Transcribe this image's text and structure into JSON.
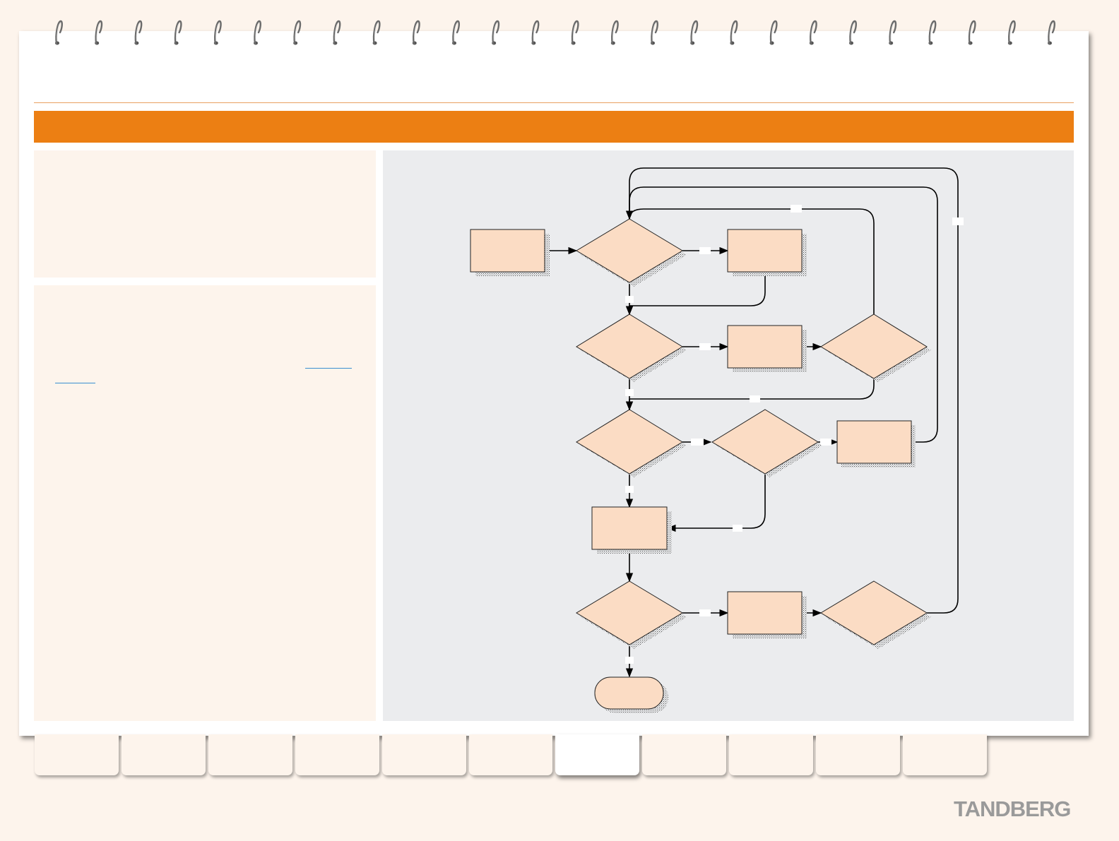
{
  "brand": {
    "logo_text": "TANDBERG"
  },
  "colors": {
    "accent_orange": "#ec7f13",
    "panel_cream": "#fdf4ec",
    "diagram_bg": "#ebecee",
    "node_fill": "#fbdcc4",
    "link_blue": "#3a8fd0",
    "brand_gray": "#9a9a9a"
  },
  "tabs": {
    "count": 11,
    "active_index": 6
  },
  "body_links": {
    "count": 2
  },
  "flowchart": {
    "node_count": 14,
    "start_nodes": 1,
    "process_nodes": 5,
    "decision_nodes": 7,
    "terminal_nodes": 1
  }
}
